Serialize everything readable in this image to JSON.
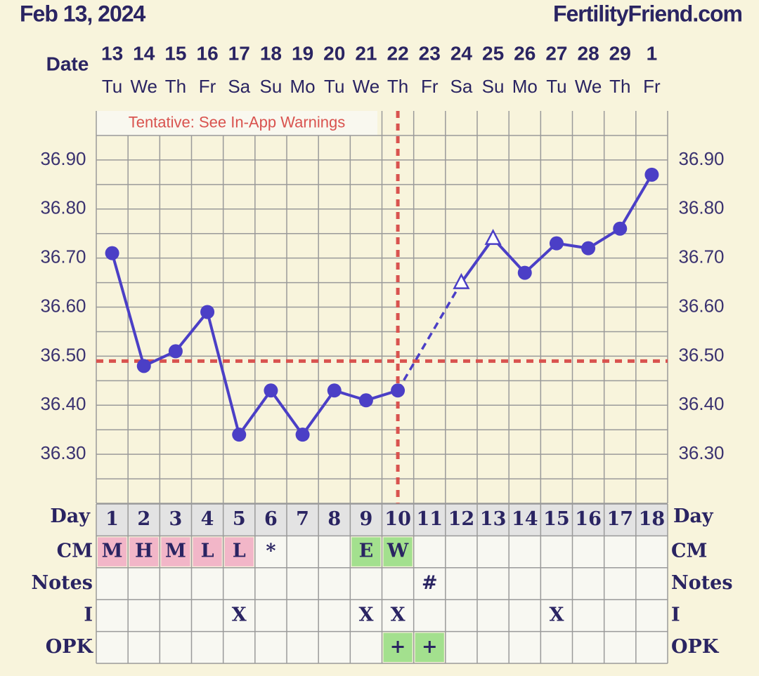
{
  "header": {
    "date": "Feb 13, 2024",
    "site": "FertilityFriend.com"
  },
  "chart_data": {
    "type": "line",
    "date_label": "Date",
    "dates": [
      "13",
      "14",
      "15",
      "16",
      "17",
      "18",
      "19",
      "20",
      "21",
      "22",
      "23",
      "24",
      "25",
      "26",
      "27",
      "28",
      "29",
      "1"
    ],
    "weekdays": [
      "Tu",
      "We",
      "Th",
      "Fr",
      "Sa",
      "Su",
      "Mo",
      "Tu",
      "We",
      "Th",
      "Fr",
      "Sa",
      "Su",
      "Mo",
      "Tu",
      "We",
      "Th",
      "Fr"
    ],
    "x_label": "Day",
    "x": [
      1,
      2,
      3,
      4,
      5,
      6,
      7,
      8,
      9,
      10,
      11,
      12,
      13,
      14,
      15,
      16,
      17,
      18
    ],
    "xlim": [
      0.5,
      18.5
    ],
    "ylim": [
      36.2,
      37.0
    ],
    "yticks": [
      {
        "value": 36.3,
        "label": "36.30"
      },
      {
        "value": 36.4,
        "label": "36.40"
      },
      {
        "value": 36.5,
        "label": "36.50"
      },
      {
        "value": 36.6,
        "label": "36.60"
      },
      {
        "value": 36.7,
        "label": "36.70"
      },
      {
        "value": 36.8,
        "label": "36.80"
      },
      {
        "value": 36.9,
        "label": "36.90"
      }
    ],
    "minor_yticks": [
      36.25,
      36.35,
      36.45,
      36.55,
      36.65,
      36.75,
      36.85,
      36.95
    ],
    "grid": true,
    "series": [
      {
        "color": "#4b3fc6",
        "values": [
          36.71,
          36.48,
          36.51,
          36.59,
          36.34,
          36.43,
          36.34,
          36.43,
          36.41,
          36.43,
          null,
          36.65,
          36.74,
          36.67,
          36.73,
          36.72,
          36.76,
          36.87
        ],
        "markers": [
          "circle",
          "circle",
          "circle",
          "circle",
          "circle",
          "circle",
          "circle",
          "circle",
          "circle",
          "circle",
          null,
          "triangle",
          "triangle",
          "circle",
          "circle",
          "circle",
          "circle",
          "circle"
        ]
      }
    ],
    "gap_style": "dashed",
    "coverline": {
      "value": 36.49,
      "color": "#d9534f"
    },
    "ovulation_day": 10,
    "annotation": "Tentative: See In-App Warnings"
  },
  "table": {
    "rows": [
      {
        "label": "CM",
        "cells": [
          "M",
          "H",
          "M",
          "L",
          "L",
          "*",
          null,
          null,
          "E",
          "W",
          null,
          null,
          null,
          null,
          null,
          null,
          null,
          null
        ],
        "fills": [
          "#f2b6c8",
          "#f2b6c8",
          "#f2b6c8",
          "#f2b6c8",
          "#f2b6c8",
          null,
          null,
          null,
          "#a3e08e",
          "#a3e08e",
          null,
          null,
          null,
          null,
          null,
          null,
          null,
          null
        ]
      },
      {
        "label": "Notes",
        "cells": [
          null,
          null,
          null,
          null,
          null,
          null,
          null,
          null,
          null,
          null,
          "#",
          null,
          null,
          null,
          null,
          null,
          null,
          null
        ],
        "fills": [
          null,
          null,
          null,
          null,
          null,
          null,
          null,
          null,
          null,
          null,
          null,
          null,
          null,
          null,
          null,
          null,
          null,
          null
        ]
      },
      {
        "label": "I",
        "cells": [
          null,
          null,
          null,
          null,
          "X",
          null,
          null,
          null,
          "X",
          "X",
          null,
          null,
          null,
          null,
          "X",
          null,
          null,
          null
        ],
        "fills": [
          null,
          null,
          null,
          null,
          null,
          null,
          null,
          null,
          null,
          null,
          null,
          null,
          null,
          null,
          null,
          null,
          null,
          null
        ]
      },
      {
        "label": "OPK",
        "cells": [
          null,
          null,
          null,
          null,
          null,
          null,
          null,
          null,
          null,
          "+",
          "+",
          null,
          null,
          null,
          null,
          null,
          null,
          null
        ],
        "fills": [
          null,
          null,
          null,
          null,
          null,
          null,
          null,
          null,
          null,
          "#a3e08e",
          "#a3e08e",
          null,
          null,
          null,
          null,
          null,
          null,
          null
        ]
      }
    ]
  }
}
